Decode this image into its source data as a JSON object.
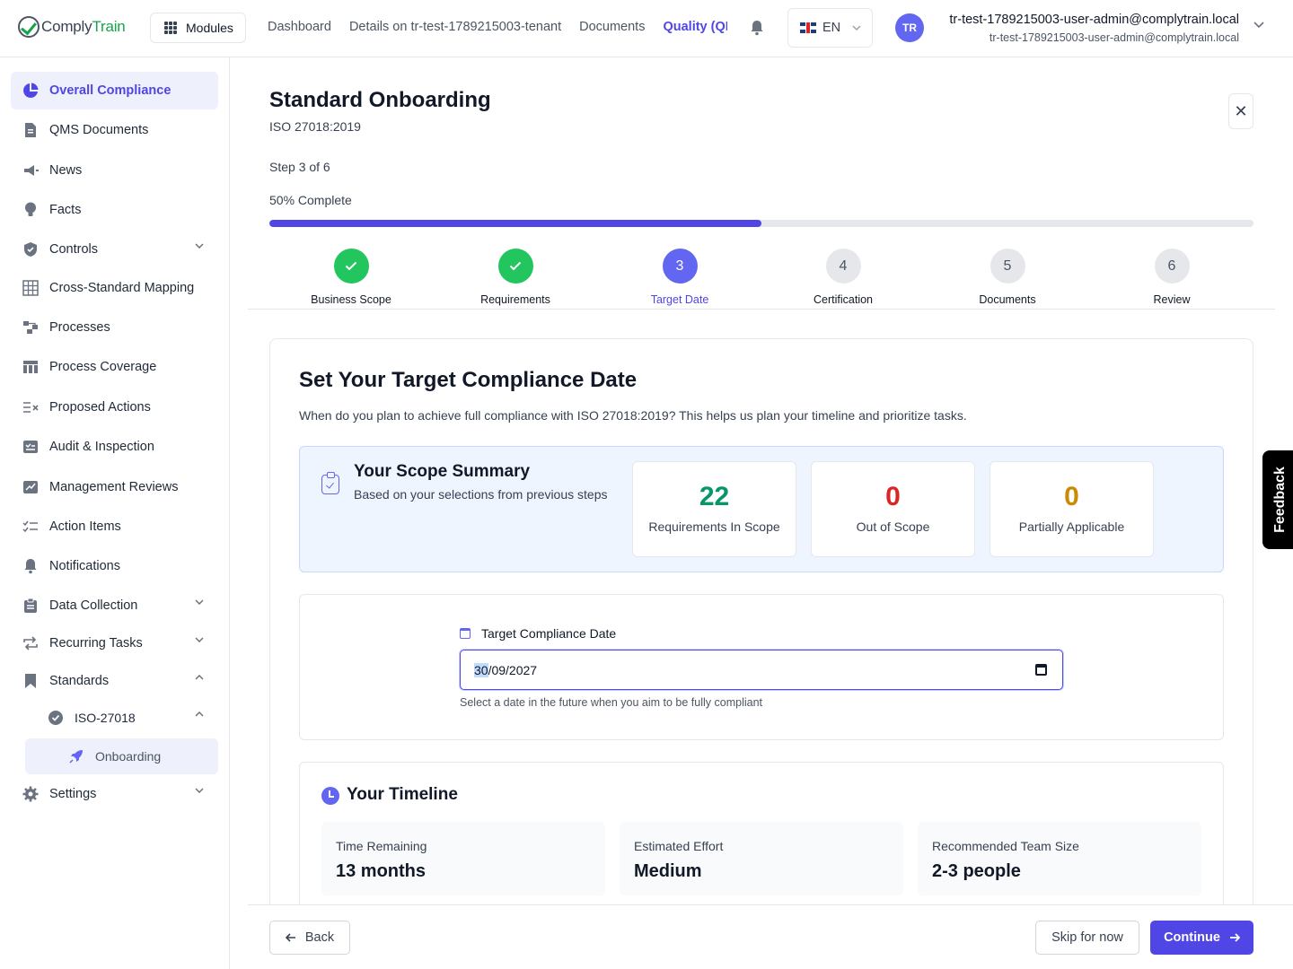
{
  "header": {
    "logo_part1": "Comply",
    "logo_part2": "Train",
    "modules_label": "Modules",
    "nav": [
      "Dashboard",
      "Details on tr-test-1789215003-tenant",
      "Documents",
      "Quality (QI"
    ],
    "language": "EN",
    "avatar_initials": "TR",
    "user_name": "tr-test-1789215003-user-admin@complytrain.local",
    "user_email": "tr-test-1789215003-user-admin@complytrain.local"
  },
  "sidebar": {
    "items": [
      {
        "label": "Overall Compliance",
        "icon": "pie-chart-icon"
      },
      {
        "label": "QMS Documents",
        "icon": "document-icon"
      },
      {
        "label": "News",
        "icon": "megaphone-icon"
      },
      {
        "label": "Facts",
        "icon": "lightbulb-icon"
      },
      {
        "label": "Controls",
        "icon": "shield-icon"
      },
      {
        "label": "Cross-Standard Mapping",
        "icon": "table-icon"
      },
      {
        "label": "Processes",
        "icon": "flow-icon"
      },
      {
        "label": "Process Coverage",
        "icon": "coverage-table-icon"
      },
      {
        "label": "Proposed Actions",
        "icon": "list-x-icon"
      },
      {
        "label": "Audit & Inspection",
        "icon": "audit-icon"
      },
      {
        "label": "Management Reviews",
        "icon": "chart-review-icon"
      },
      {
        "label": "Action Items",
        "icon": "checklist-icon"
      },
      {
        "label": "Notifications",
        "icon": "bell-icon"
      },
      {
        "label": "Data Collection",
        "icon": "clipboard-icon"
      },
      {
        "label": "Recurring Tasks",
        "icon": "repeat-icon"
      },
      {
        "label": "Standards",
        "icon": "bookmark-icon"
      },
      {
        "label": "ISO-27018",
        "icon": "badge-check-icon"
      },
      {
        "label": "Onboarding",
        "icon": "rocket-icon"
      },
      {
        "label": "Settings",
        "icon": "gear-icon"
      }
    ]
  },
  "main": {
    "title": "Standard Onboarding",
    "subtitle": "ISO 27018:2019",
    "step_text": "Step 3 of 6",
    "percent_text": "50% Complete",
    "progress_fraction": 0.5,
    "steps": [
      {
        "num": "1",
        "label": "Business Scope",
        "state": "done"
      },
      {
        "num": "2",
        "label": "Requirements",
        "state": "done"
      },
      {
        "num": "3",
        "label": "Target Date",
        "state": "current"
      },
      {
        "num": "4",
        "label": "Certification",
        "state": "todo"
      },
      {
        "num": "5",
        "label": "Documents",
        "state": "todo"
      },
      {
        "num": "6",
        "label": "Review",
        "state": "todo"
      }
    ],
    "heading": "Set Your Target Compliance Date",
    "description": "When do you plan to achieve full compliance with ISO 27018:2019? This helps us plan your timeline and prioritize tasks.",
    "scope": {
      "title": "Your Scope Summary",
      "subtitle": "Based on your selections from previous steps",
      "stats": [
        {
          "value": "22",
          "label": "Requirements In Scope",
          "color": "#059669"
        },
        {
          "value": "0",
          "label": "Out of Scope",
          "color": "#dc2626"
        },
        {
          "value": "0",
          "label": "Partially Applicable",
          "color": "#ca8a04"
        }
      ]
    },
    "date": {
      "label": "Target Compliance Date",
      "day": "30",
      "rest": "/09/2027",
      "help": "Select a date in the future when you aim to be fully compliant"
    },
    "timeline": {
      "title": "Your Timeline",
      "cards": [
        {
          "key": "Time Remaining",
          "value": "13 months"
        },
        {
          "key": "Estimated Effort",
          "value": "Medium"
        },
        {
          "key": "Recommended Team Size",
          "value": "2-3 people"
        }
      ]
    }
  },
  "footer": {
    "back_label": "Back",
    "skip_label": "Skip for now",
    "continue_label": "Continue"
  },
  "feedback_label": "Feedback"
}
